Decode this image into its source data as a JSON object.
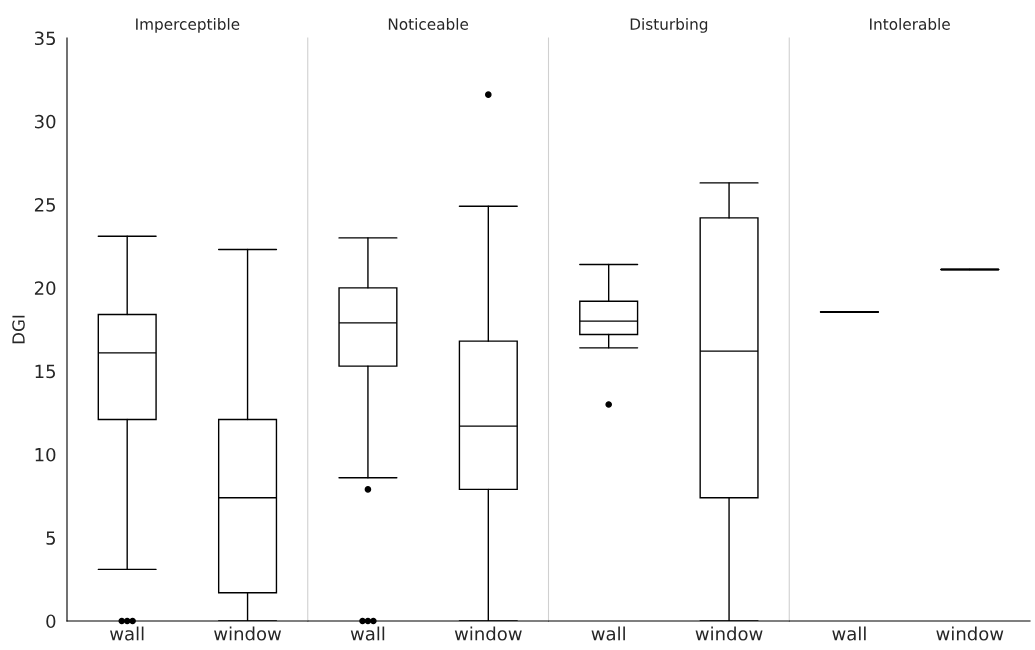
{
  "chart_data": [
    {
      "type": "box",
      "title": "Imperceptible",
      "ylabel": "DGI",
      "categories": [
        "wall",
        "window"
      ],
      "ylim": [
        0,
        35
      ],
      "yticks": [
        0,
        5,
        10,
        15,
        20,
        25,
        30,
        35
      ],
      "grid": false,
      "boxes": [
        {
          "low": 3.1,
          "q1": 12.1,
          "median": 16.1,
          "q3": 18.4,
          "high": 23.1,
          "outliers": [
            0,
            0,
            0
          ]
        },
        {
          "low": 0,
          "q1": 1.7,
          "median": 7.4,
          "q3": 12.1,
          "high": 22.3
        }
      ]
    },
    {
      "type": "box",
      "title": "Noticeable",
      "categories": [
        "wall",
        "window"
      ],
      "ylim": [
        0,
        35
      ],
      "yticks": [
        0,
        5,
        10,
        15,
        20,
        25,
        30,
        35
      ],
      "tick_labels": "x",
      "grid": false,
      "boxes": [
        {
          "low": 8.6,
          "q1": 15.3,
          "median": 17.9,
          "q3": 20.0,
          "high": 23.0,
          "outliers": [
            7.9,
            0,
            0,
            0
          ]
        },
        {
          "low": 0,
          "q1": 7.9,
          "median": 11.7,
          "q3": 16.8,
          "high": 24.9,
          "outliers": [
            31.6
          ]
        }
      ]
    },
    {
      "type": "box",
      "title": "Disturbing",
      "categories": [
        "wall",
        "window"
      ],
      "ylim": [
        0,
        35
      ],
      "yticks": [
        0,
        5,
        10,
        15,
        20,
        25,
        30,
        35
      ],
      "tick_labels": "x",
      "grid": false,
      "boxes": [
        {
          "low": 16.4,
          "q1": 17.2,
          "median": 18.0,
          "q3": 19.2,
          "high": 21.4,
          "outliers": [
            13.0
          ]
        },
        {
          "low": 0,
          "q1": 7.4,
          "median": 16.2,
          "q3": 24.2,
          "high": 26.3
        }
      ]
    },
    {
      "type": "box",
      "title": "Intolerable",
      "categories": [
        "wall",
        "window"
      ],
      "ylim": [
        0,
        35
      ],
      "yticks": [
        0,
        5,
        10,
        15,
        20,
        25,
        30,
        35
      ],
      "tick_labels": "x",
      "grid": false,
      "boxes": [
        {
          "low": 18.55,
          "q1": 18.55,
          "median": 18.55,
          "q3": 18.55,
          "high": 18.55
        },
        {
          "low": 21.1,
          "q1": 21.1,
          "median": 21.1,
          "q3": 21.1,
          "high": 21.1
        }
      ]
    }
  ]
}
